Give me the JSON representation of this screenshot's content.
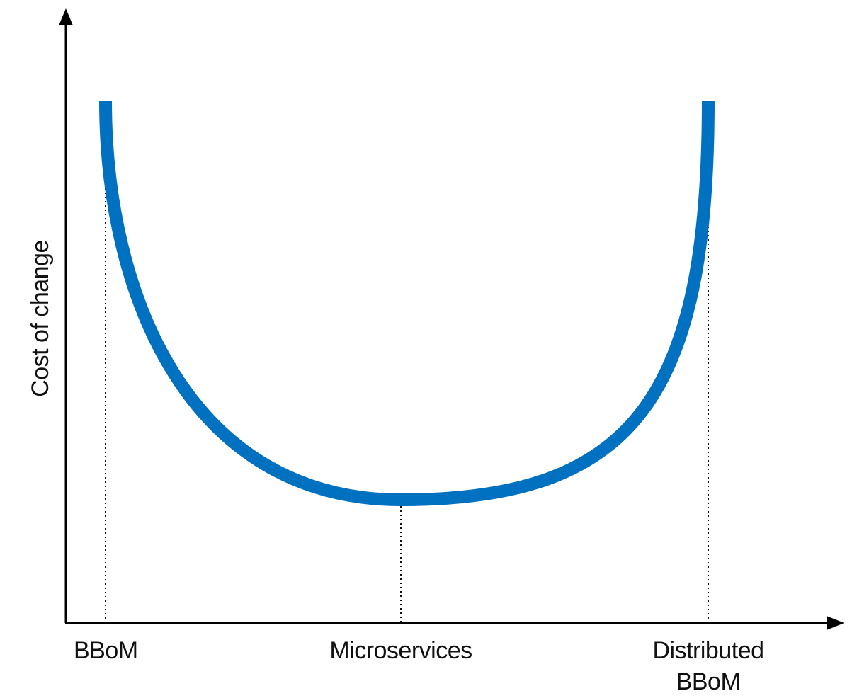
{
  "chart_data": {
    "type": "line",
    "title": "",
    "xlabel": "",
    "ylabel": "Cost of change",
    "categories": [
      "BBoM",
      "Microservices",
      "Distributed BBoM"
    ],
    "category_lines": [
      [
        "BBoM"
      ],
      [
        "Microservices"
      ],
      [
        "Distributed",
        "BBoM"
      ]
    ],
    "x_positions": [
      0,
      0.49,
      1
    ],
    "curve_shape": "U-shaped curve with minimum at Microservices",
    "grid": false,
    "legend": "none",
    "series": [
      {
        "color": "#0070c0"
      }
    ]
  }
}
